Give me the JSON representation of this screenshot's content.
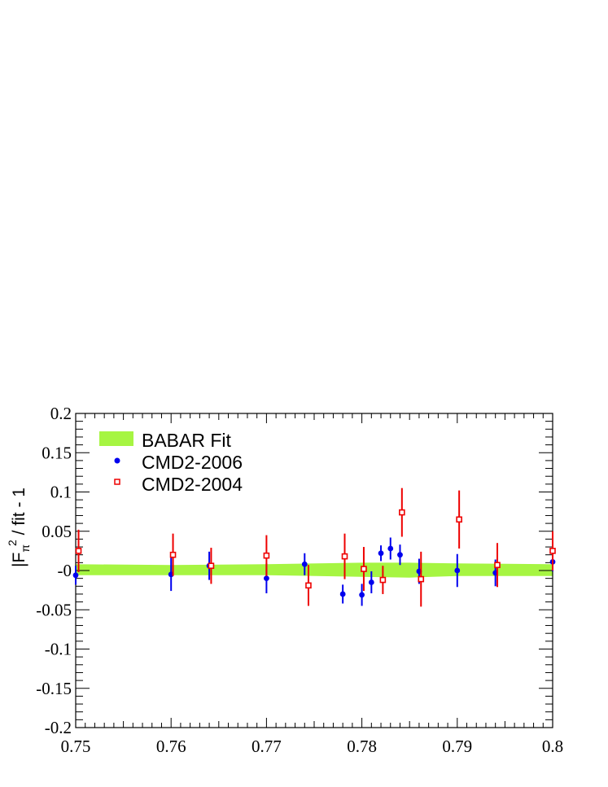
{
  "chart_data": {
    "type": "scatter",
    "ylabel": "|F_π|² / fit - 1",
    "ylabel_parts": {
      "main": "|F",
      "sub": "π",
      "sup": "2",
      "rest": " / fit - 1"
    },
    "xlim": [
      0.75,
      0.8
    ],
    "ylim": [
      -0.2,
      0.2
    ],
    "x_ticks": [
      0.75,
      0.76,
      0.77,
      0.78,
      0.79,
      0.8
    ],
    "x_tick_labels": [
      "0.75",
      "0.76",
      "0.77",
      "0.78",
      "0.79",
      "0.8"
    ],
    "y_ticks": [
      0.2,
      0.15,
      0.1,
      0.05,
      0,
      -0.05,
      -0.1,
      -0.15,
      -0.2
    ],
    "y_tick_labels": [
      "0.2",
      "0.15",
      "0.1",
      "0.05",
      "-0",
      "-0.05",
      "-0.1",
      "-0.15",
      "-0.2"
    ],
    "grid": false,
    "legend_position": "top-left",
    "band": {
      "name": "BABAR Fit",
      "color": "#a6f542",
      "x": [
        0.75,
        0.76,
        0.77,
        0.78,
        0.785,
        0.79,
        0.8
      ],
      "low": [
        -0.006,
        -0.006,
        -0.006,
        -0.008,
        -0.009,
        -0.007,
        -0.007
      ],
      "high": [
        0.008,
        0.007,
        0.008,
        0.01,
        0.01,
        0.009,
        0.008
      ]
    },
    "series": [
      {
        "name": "CMD2-2006",
        "color": "#0000ee",
        "marker": "circle",
        "points": [
          {
            "x": 0.75,
            "y": -0.006,
            "err": 0.012
          },
          {
            "x": 0.76,
            "y": -0.005,
            "err": 0.021
          },
          {
            "x": 0.764,
            "y": 0.006,
            "err": 0.018
          },
          {
            "x": 0.77,
            "y": -0.01,
            "err": 0.019
          },
          {
            "x": 0.774,
            "y": 0.008,
            "err": 0.014
          },
          {
            "x": 0.778,
            "y": -0.03,
            "err": 0.012
          },
          {
            "x": 0.78,
            "y": -0.031,
            "err": 0.014
          },
          {
            "x": 0.781,
            "y": -0.015,
            "err": 0.014
          },
          {
            "x": 0.782,
            "y": 0.022,
            "err": 0.01
          },
          {
            "x": 0.783,
            "y": 0.028,
            "err": 0.014
          },
          {
            "x": 0.784,
            "y": 0.02,
            "err": 0.013
          },
          {
            "x": 0.786,
            "y": -0.001,
            "err": 0.016
          },
          {
            "x": 0.79,
            "y": 0.0,
            "err": 0.021
          },
          {
            "x": 0.794,
            "y": -0.003,
            "err": 0.017
          },
          {
            "x": 0.8,
            "y": 0.011,
            "err": 0.012
          }
        ]
      },
      {
        "name": "CMD2-2004",
        "color": "#ee0000",
        "marker": "open-square",
        "points": [
          {
            "x": 0.7503,
            "y": 0.025,
            "err": 0.027
          },
          {
            "x": 0.7602,
            "y": 0.02,
            "err": 0.027
          },
          {
            "x": 0.7642,
            "y": 0.006,
            "err": 0.023
          },
          {
            "x": 0.77,
            "y": 0.019,
            "err": 0.026
          },
          {
            "x": 0.7744,
            "y": -0.019,
            "err": 0.026
          },
          {
            "x": 0.7782,
            "y": 0.018,
            "err": 0.029
          },
          {
            "x": 0.7802,
            "y": 0.002,
            "err": 0.028
          },
          {
            "x": 0.7822,
            "y": -0.012,
            "err": 0.018
          },
          {
            "x": 0.7842,
            "y": 0.074,
            "err": 0.031
          },
          {
            "x": 0.7862,
            "y": -0.011,
            "err": 0.035
          },
          {
            "x": 0.7902,
            "y": 0.065,
            "err": 0.037
          },
          {
            "x": 0.7942,
            "y": 0.007,
            "err": 0.028
          },
          {
            "x": 0.8,
            "y": 0.025,
            "err": 0.025
          }
        ]
      }
    ]
  }
}
